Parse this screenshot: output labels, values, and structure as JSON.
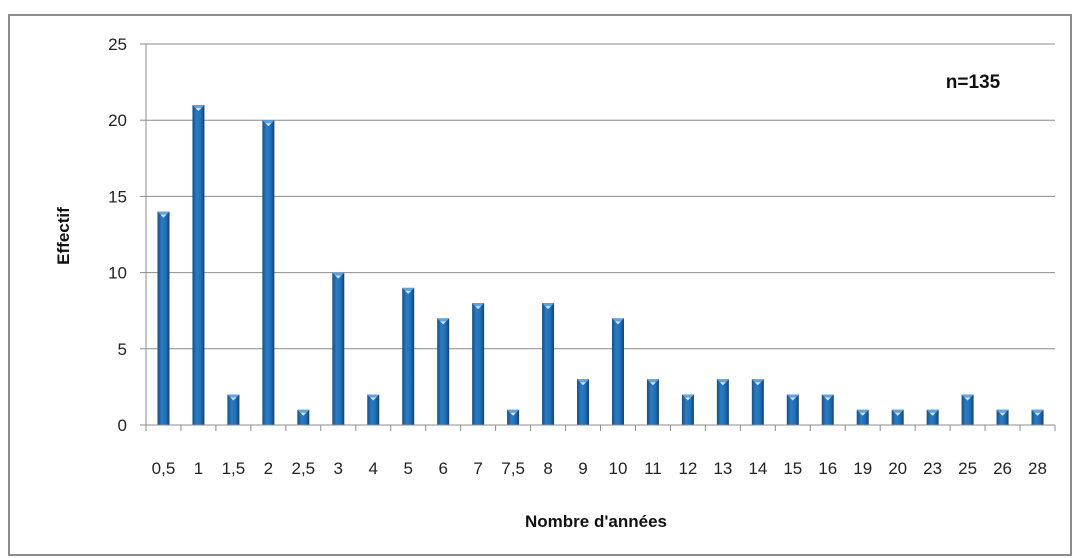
{
  "chart_data": {
    "type": "bar",
    "categories": [
      "0,5",
      "1",
      "1,5",
      "2",
      "2,5",
      "3",
      "4",
      "5",
      "6",
      "7",
      "7,5",
      "8",
      "9",
      "10",
      "11",
      "12",
      "13",
      "14",
      "15",
      "16",
      "19",
      "20",
      "23",
      "25",
      "26",
      "28"
    ],
    "values": [
      14,
      21,
      2,
      20,
      1,
      10,
      2,
      9,
      7,
      8,
      1,
      8,
      3,
      7,
      3,
      2,
      3,
      3,
      2,
      2,
      1,
      1,
      1,
      2,
      1,
      1
    ],
    "xlabel": "Nombre d'années",
    "ylabel": "Effectif",
    "ylim": [
      0,
      25
    ],
    "yticks": [
      0,
      5,
      10,
      15,
      20,
      25
    ],
    "annotation": "n=135",
    "grid": true,
    "legend": "none",
    "colors": {
      "bar": "#1f6fb5",
      "bar_dark": "#174f86",
      "bar_light": "#5fa3e0",
      "grid": "#8c8c8c",
      "axis": "#8c8c8c"
    }
  }
}
